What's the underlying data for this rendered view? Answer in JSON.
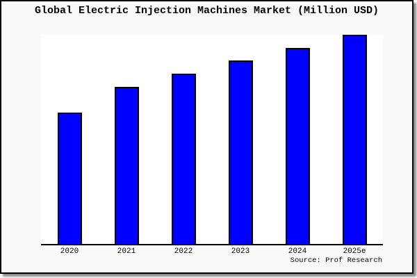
{
  "title": "Global Electric Injection Machines Market (Million USD)",
  "source_credit": "Source: Prof Research",
  "colors": {
    "bar_fill": "#0000ff",
    "bar_border": "#000000",
    "frame_background": "#f9f9f9",
    "plot_background": "#ffffff",
    "axis_line": "#000000",
    "text": "#000000",
    "frame_shadow": "#8a8a8a"
  },
  "chart_data": {
    "type": "bar",
    "title": "Global Electric Injection Machines Market (Million USD)",
    "categories": [
      "2020",
      "2021",
      "2022",
      "2023",
      "2024",
      "2025e"
    ],
    "values": [
      62.8,
      75.1,
      81.4,
      87.7,
      93.7,
      100
    ],
    "values_note": "No numeric y-axis shown in the figure; values are relative bar heights indexed to 2025e = 100",
    "xlabel": "",
    "ylabel": "",
    "grid": false,
    "legend": null,
    "y_axis_visible": false,
    "x_axis_line_visible": true,
    "bar_color": "#0000ff",
    "source": "Source: Prof Research"
  }
}
